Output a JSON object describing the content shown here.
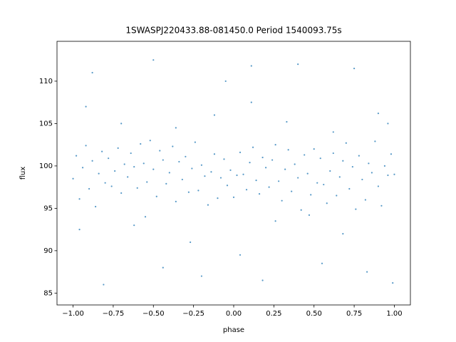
{
  "chart_data": {
    "type": "scatter",
    "title": "1SWASPJ220433.88-081450.0 Period 1540093.75s",
    "x_label": "phase",
    "y_label": "flux",
    "color": "#1f77b4",
    "xlim": [
      -1.1,
      1.1
    ],
    "ylim": [
      83.6,
      114.7
    ],
    "xticks": [
      {
        "value": -1,
        "label": "−1.00"
      },
      {
        "value": -0.75,
        "label": "−0.75"
      },
      {
        "value": -0.5,
        "label": "−0.50"
      },
      {
        "value": -0.25,
        "label": "−0.25"
      },
      {
        "value": 0,
        "label": "0.00"
      },
      {
        "value": 0.25,
        "label": "0.25"
      },
      {
        "value": 0.5,
        "label": "0.50"
      },
      {
        "value": 0.75,
        "label": "0.75"
      },
      {
        "value": 1,
        "label": "1.00"
      }
    ],
    "yticks": [
      85,
      90,
      95,
      100,
      105,
      110
    ],
    "x": [
      -1.0,
      -0.98,
      -0.96,
      -0.94,
      -0.92,
      -0.9,
      -0.88,
      -0.86,
      -0.84,
      -0.82,
      -0.8,
      -0.78,
      -0.76,
      -0.74,
      -0.72,
      -0.7,
      -0.68,
      -0.66,
      -0.64,
      -0.62,
      -0.6,
      -0.58,
      -0.56,
      -0.54,
      -0.52,
      -0.5,
      -0.48,
      -0.46,
      -0.44,
      -0.42,
      -0.4,
      -0.38,
      -0.36,
      -0.34,
      -0.32,
      -0.3,
      -0.28,
      -0.26,
      -0.24,
      -0.22,
      -0.2,
      -0.18,
      -0.16,
      -0.14,
      -0.12,
      -0.1,
      -0.08,
      -0.06,
      -0.04,
      -0.02,
      0.0,
      0.02,
      0.04,
      0.06,
      0.08,
      0.1,
      0.12,
      0.14,
      0.16,
      0.18,
      0.2,
      0.22,
      0.24,
      0.26,
      0.28,
      0.3,
      0.32,
      0.34,
      0.36,
      0.38,
      0.4,
      0.42,
      0.44,
      0.46,
      0.48,
      0.5,
      0.52,
      0.54,
      0.56,
      0.58,
      0.6,
      0.62,
      0.64,
      0.66,
      0.68,
      0.7,
      0.72,
      0.74,
      0.76,
      0.78,
      0.8,
      0.82,
      0.84,
      0.86,
      0.88,
      0.9,
      0.92,
      0.94,
      0.96,
      0.98,
      1.0,
      -0.96,
      -0.92,
      -0.88,
      -0.81,
      -0.7,
      -0.62,
      -0.55,
      -0.5,
      -0.44,
      -0.36,
      -0.27,
      -0.2,
      -0.12,
      -0.05,
      0.04,
      0.11,
      0.11,
      0.18,
      0.26,
      0.33,
      0.4,
      0.47,
      0.55,
      0.62,
      0.68,
      0.75,
      0.83,
      0.9,
      0.96,
      0.99
    ],
    "values": [
      98.5,
      101.2,
      96.1,
      99.8,
      102.4,
      97.3,
      100.6,
      95.2,
      99.1,
      101.7,
      98.0,
      100.9,
      97.6,
      99.4,
      102.1,
      96.8,
      100.2,
      98.7,
      101.5,
      99.9,
      97.4,
      102.6,
      100.3,
      98.1,
      103.0,
      99.6,
      96.4,
      101.8,
      100.7,
      97.9,
      99.2,
      102.3,
      95.8,
      100.5,
      98.4,
      101.1,
      96.9,
      99.7,
      102.8,
      97.1,
      100.1,
      98.8,
      95.4,
      99.3,
      101.4,
      96.2,
      98.6,
      100.8,
      97.7,
      99.5,
      96.3,
      98.9,
      101.6,
      99.0,
      97.2,
      100.4,
      102.2,
      98.3,
      96.7,
      101.0,
      99.8,
      97.5,
      100.7,
      102.5,
      98.2,
      95.9,
      99.6,
      101.9,
      97.0,
      100.2,
      98.6,
      94.8,
      101.3,
      99.1,
      96.6,
      102.0,
      98.0,
      100.9,
      97.8,
      95.6,
      99.4,
      101.5,
      96.5,
      98.7,
      100.6,
      102.7,
      97.3,
      99.9,
      94.9,
      101.2,
      98.4,
      96.0,
      100.3,
      99.2,
      102.9,
      97.6,
      95.3,
      100.0,
      98.9,
      101.4,
      99.0,
      92.5,
      107.0,
      111.0,
      86.0,
      105.0,
      93.0,
      94.0,
      112.5,
      88.0,
      104.5,
      91.0,
      87.0,
      106.0,
      110.0,
      89.5,
      107.5,
      111.8,
      86.5,
      93.5,
      105.2,
      112.0,
      94.2,
      88.5,
      104.0,
      92.0,
      111.5,
      87.5,
      106.2,
      105.0,
      86.2
    ]
  }
}
